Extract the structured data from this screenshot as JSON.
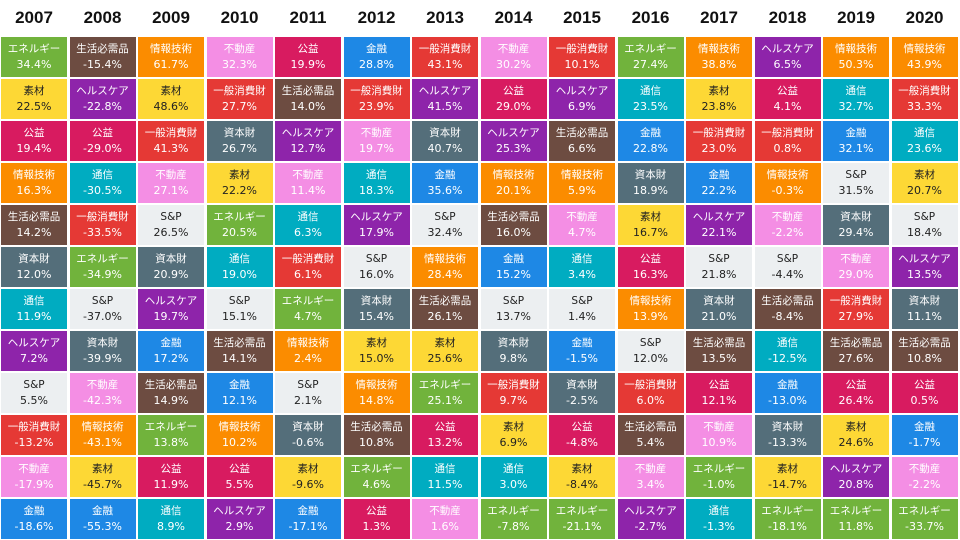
{
  "chart_data": {
    "type": "table",
    "title": "",
    "years": [
      "2007",
      "2008",
      "2009",
      "2010",
      "2011",
      "2012",
      "2013",
      "2014",
      "2015",
      "2016",
      "2017",
      "2018",
      "2019",
      "2020"
    ],
    "colors": {
      "エネルギー": "#71b33c",
      "生活必需品": "#6d4c41",
      "情報技術": "#fb8c00",
      "不動産": "#f48ee4",
      "公益": "#d81b60",
      "金融": "#1e88e5",
      "一般消費財": "#e53935",
      "素材": "#fdd835",
      "ヘルスケア": "#8e24aa",
      "通信": "#00acc1",
      "資本財": "#546e7a",
      "S&P": "#eceff1"
    },
    "dark_text_sectors": [
      "素材",
      "S&P"
    ],
    "columns": [
      [
        [
          "エネルギー",
          "34.4%"
        ],
        [
          "素材",
          "22.5%"
        ],
        [
          "公益",
          "19.4%"
        ],
        [
          "情報技術",
          "16.3%"
        ],
        [
          "生活必需品",
          "14.2%"
        ],
        [
          "資本財",
          "12.0%"
        ],
        [
          "通信",
          "11.9%"
        ],
        [
          "ヘルスケア",
          "7.2%"
        ],
        [
          "S&P",
          "5.5%"
        ],
        [
          "一般消費財",
          "-13.2%"
        ],
        [
          "不動産",
          "-17.9%"
        ],
        [
          "金融",
          "-18.6%"
        ]
      ],
      [
        [
          "生活必需品",
          "-15.4%"
        ],
        [
          "ヘルスケア",
          "-22.8%"
        ],
        [
          "公益",
          "-29.0%"
        ],
        [
          "通信",
          "-30.5%"
        ],
        [
          "一般消費財",
          "-33.5%"
        ],
        [
          "エネルギー",
          "-34.9%"
        ],
        [
          "S&P",
          "-37.0%"
        ],
        [
          "資本財",
          "-39.9%"
        ],
        [
          "不動産",
          "-42.3%"
        ],
        [
          "情報技術",
          "-43.1%"
        ],
        [
          "素材",
          "-45.7%"
        ],
        [
          "金融",
          "-55.3%"
        ]
      ],
      [
        [
          "情報技術",
          "61.7%"
        ],
        [
          "素材",
          "48.6%"
        ],
        [
          "一般消費財",
          "41.3%"
        ],
        [
          "不動産",
          "27.1%"
        ],
        [
          "S&P",
          "26.5%"
        ],
        [
          "資本財",
          "20.9%"
        ],
        [
          "ヘルスケア",
          "19.7%"
        ],
        [
          "金融",
          "17.2%"
        ],
        [
          "生活必需品",
          "14.9%"
        ],
        [
          "エネルギー",
          "13.8%"
        ],
        [
          "公益",
          "11.9%"
        ],
        [
          "通信",
          "8.9%"
        ]
      ],
      [
        [
          "不動産",
          "32.3%"
        ],
        [
          "一般消費財",
          "27.7%"
        ],
        [
          "資本財",
          "26.7%"
        ],
        [
          "素材",
          "22.2%"
        ],
        [
          "エネルギー",
          "20.5%"
        ],
        [
          "通信",
          "19.0%"
        ],
        [
          "S&P",
          "15.1%"
        ],
        [
          "生活必需品",
          "14.1%"
        ],
        [
          "金融",
          "12.1%"
        ],
        [
          "情報技術",
          "10.2%"
        ],
        [
          "公益",
          "5.5%"
        ],
        [
          "ヘルスケア",
          "2.9%"
        ]
      ],
      [
        [
          "公益",
          "19.9%"
        ],
        [
          "生活必需品",
          "14.0%"
        ],
        [
          "ヘルスケア",
          "12.7%"
        ],
        [
          "不動産",
          "11.4%"
        ],
        [
          "通信",
          "6.3%"
        ],
        [
          "一般消費財",
          "6.1%"
        ],
        [
          "エネルギー",
          "4.7%"
        ],
        [
          "情報技術",
          "2.4%"
        ],
        [
          "S&P",
          "2.1%"
        ],
        [
          "資本財",
          "-0.6%"
        ],
        [
          "素材",
          "-9.6%"
        ],
        [
          "金融",
          "-17.1%"
        ]
      ],
      [
        [
          "金融",
          "28.8%"
        ],
        [
          "一般消費財",
          "23.9%"
        ],
        [
          "不動産",
          "19.7%"
        ],
        [
          "通信",
          "18.3%"
        ],
        [
          "ヘルスケア",
          "17.9%"
        ],
        [
          "S&P",
          "16.0%"
        ],
        [
          "資本財",
          "15.4%"
        ],
        [
          "素材",
          "15.0%"
        ],
        [
          "情報技術",
          "14.8%"
        ],
        [
          "生活必需品",
          "10.8%"
        ],
        [
          "エネルギー",
          "4.6%"
        ],
        [
          "公益",
          "1.3%"
        ]
      ],
      [
        [
          "一般消費財",
          "43.1%"
        ],
        [
          "ヘルスケア",
          "41.5%"
        ],
        [
          "資本財",
          "40.7%"
        ],
        [
          "金融",
          "35.6%"
        ],
        [
          "S&P",
          "32.4%"
        ],
        [
          "情報技術",
          "28.4%"
        ],
        [
          "生活必需品",
          "26.1%"
        ],
        [
          "素材",
          "25.6%"
        ],
        [
          "エネルギー",
          "25.1%"
        ],
        [
          "公益",
          "13.2%"
        ],
        [
          "通信",
          "11.5%"
        ],
        [
          "不動産",
          "1.6%"
        ]
      ],
      [
        [
          "不動産",
          "30.2%"
        ],
        [
          "公益",
          "29.0%"
        ],
        [
          "ヘルスケア",
          "25.3%"
        ],
        [
          "情報技術",
          "20.1%"
        ],
        [
          "生活必需品",
          "16.0%"
        ],
        [
          "金融",
          "15.2%"
        ],
        [
          "S&P",
          "13.7%"
        ],
        [
          "資本財",
          "9.8%"
        ],
        [
          "一般消費財",
          "9.7%"
        ],
        [
          "素材",
          "6.9%"
        ],
        [
          "通信",
          "3.0%"
        ],
        [
          "エネルギー",
          "-7.8%"
        ]
      ],
      [
        [
          "一般消費財",
          "10.1%"
        ],
        [
          "ヘルスケア",
          "6.9%"
        ],
        [
          "生活必需品",
          "6.6%"
        ],
        [
          "情報技術",
          "5.9%"
        ],
        [
          "不動産",
          "4.7%"
        ],
        [
          "通信",
          "3.4%"
        ],
        [
          "S&P",
          "1.4%"
        ],
        [
          "金融",
          "-1.5%"
        ],
        [
          "資本財",
          "-2.5%"
        ],
        [
          "公益",
          "-4.8%"
        ],
        [
          "素材",
          "-8.4%"
        ],
        [
          "エネルギー",
          "-21.1%"
        ]
      ],
      [
        [
          "エネルギー",
          "27.4%"
        ],
        [
          "通信",
          "23.5%"
        ],
        [
          "金融",
          "22.8%"
        ],
        [
          "資本財",
          "18.9%"
        ],
        [
          "素材",
          "16.7%"
        ],
        [
          "公益",
          "16.3%"
        ],
        [
          "情報技術",
          "13.9%"
        ],
        [
          "S&P",
          "12.0%"
        ],
        [
          "一般消費財",
          "6.0%"
        ],
        [
          "生活必需品",
          "5.4%"
        ],
        [
          "不動産",
          "3.4%"
        ],
        [
          "ヘルスケア",
          "-2.7%"
        ]
      ],
      [
        [
          "情報技術",
          "38.8%"
        ],
        [
          "素材",
          "23.8%"
        ],
        [
          "一般消費財",
          "23.0%"
        ],
        [
          "金融",
          "22.2%"
        ],
        [
          "ヘルスケア",
          "22.1%"
        ],
        [
          "S&P",
          "21.8%"
        ],
        [
          "資本財",
          "21.0%"
        ],
        [
          "生活必需品",
          "13.5%"
        ],
        [
          "公益",
          "12.1%"
        ],
        [
          "不動産",
          "10.9%"
        ],
        [
          "エネルギー",
          "-1.0%"
        ],
        [
          "通信",
          "-1.3%"
        ]
      ],
      [
        [
          "ヘルスケア",
          "6.5%"
        ],
        [
          "公益",
          "4.1%"
        ],
        [
          "一般消費財",
          "0.8%"
        ],
        [
          "情報技術",
          "-0.3%"
        ],
        [
          "不動産",
          "-2.2%"
        ],
        [
          "S&P",
          "-4.4%"
        ],
        [
          "生活必需品",
          "-8.4%"
        ],
        [
          "通信",
          "-12.5%"
        ],
        [
          "金融",
          "-13.0%"
        ],
        [
          "資本財",
          "-13.3%"
        ],
        [
          "素材",
          "-14.7%"
        ],
        [
          "エネルギー",
          "-18.1%"
        ]
      ],
      [
        [
          "情報技術",
          "50.3%"
        ],
        [
          "通信",
          "32.7%"
        ],
        [
          "金融",
          "32.1%"
        ],
        [
          "S&P",
          "31.5%"
        ],
        [
          "資本財",
          "29.4%"
        ],
        [
          "不動産",
          "29.0%"
        ],
        [
          "一般消費財",
          "27.9%"
        ],
        [
          "生活必需品",
          "27.6%"
        ],
        [
          "公益",
          "26.4%"
        ],
        [
          "素材",
          "24.6%"
        ],
        [
          "ヘルスケア",
          "20.8%"
        ],
        [
          "エネルギー",
          "11.8%"
        ]
      ],
      [
        [
          "情報技術",
          "43.9%"
        ],
        [
          "一般消費財",
          "33.3%"
        ],
        [
          "通信",
          "23.6%"
        ],
        [
          "素材",
          "20.7%"
        ],
        [
          "S&P",
          "18.4%"
        ],
        [
          "ヘルスケア",
          "13.5%"
        ],
        [
          "資本財",
          "11.1%"
        ],
        [
          "生活必需品",
          "10.8%"
        ],
        [
          "公益",
          "0.5%"
        ],
        [
          "金融",
          "-1.7%"
        ],
        [
          "不動産",
          "-2.2%"
        ],
        [
          "エネルギー",
          "-33.7%"
        ]
      ]
    ]
  }
}
